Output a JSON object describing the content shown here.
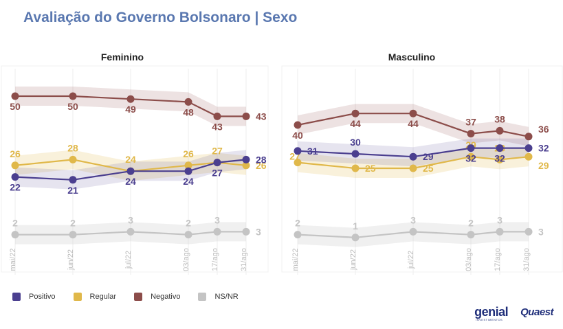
{
  "title": "Avaliação do Governo Bolsonaro | Sexo",
  "legend": [
    {
      "label": "Positivo",
      "color": "#4b3f8f"
    },
    {
      "label": "Regular",
      "color": "#e0b84a"
    },
    {
      "label": "Negativo",
      "color": "#8c4d4a"
    },
    {
      "label": "NS/NR",
      "color": "#c4c4c4"
    }
  ],
  "logos": {
    "genial": "genial",
    "genial_sub": "INVESTIMENTOS",
    "quaest": "Quaest"
  },
  "chart_data": [
    {
      "type": "line",
      "title": "Feminino",
      "categories": [
        "mai/22",
        "jun/22",
        "jul/22",
        "03/ago",
        "17/ago",
        "31/ago"
      ],
      "x": [
        0,
        1,
        2,
        3,
        3.5,
        4
      ],
      "series": [
        {
          "name": "Positivo",
          "values": [
            22,
            21,
            24,
            24,
            27,
            28
          ]
        },
        {
          "name": "Regular",
          "values": [
            26,
            28,
            24,
            26,
            27,
            26
          ]
        },
        {
          "name": "Negativo",
          "values": [
            50,
            50,
            49,
            48,
            43,
            43
          ]
        },
        {
          "name": "NS/NR",
          "values": [
            2,
            2,
            3,
            2,
            3,
            3
          ]
        }
      ]
    },
    {
      "type": "line",
      "title": "Masculino",
      "categories": [
        "mai/22",
        "jun/22",
        "jul/22",
        "03/ago",
        "17/ago",
        "31/ago"
      ],
      "x": [
        0,
        1,
        2,
        3,
        3.5,
        4
      ],
      "series": [
        {
          "name": "Positivo",
          "values": [
            31,
            30,
            29,
            32,
            32,
            32
          ]
        },
        {
          "name": "Regular",
          "values": [
            27,
            25,
            25,
            29,
            28,
            29
          ]
        },
        {
          "name": "Negativo",
          "values": [
            40,
            44,
            44,
            37,
            38,
            36
          ]
        },
        {
          "name": "NS/NR",
          "values": [
            2,
            1,
            3,
            2,
            3,
            3
          ]
        }
      ]
    }
  ]
}
